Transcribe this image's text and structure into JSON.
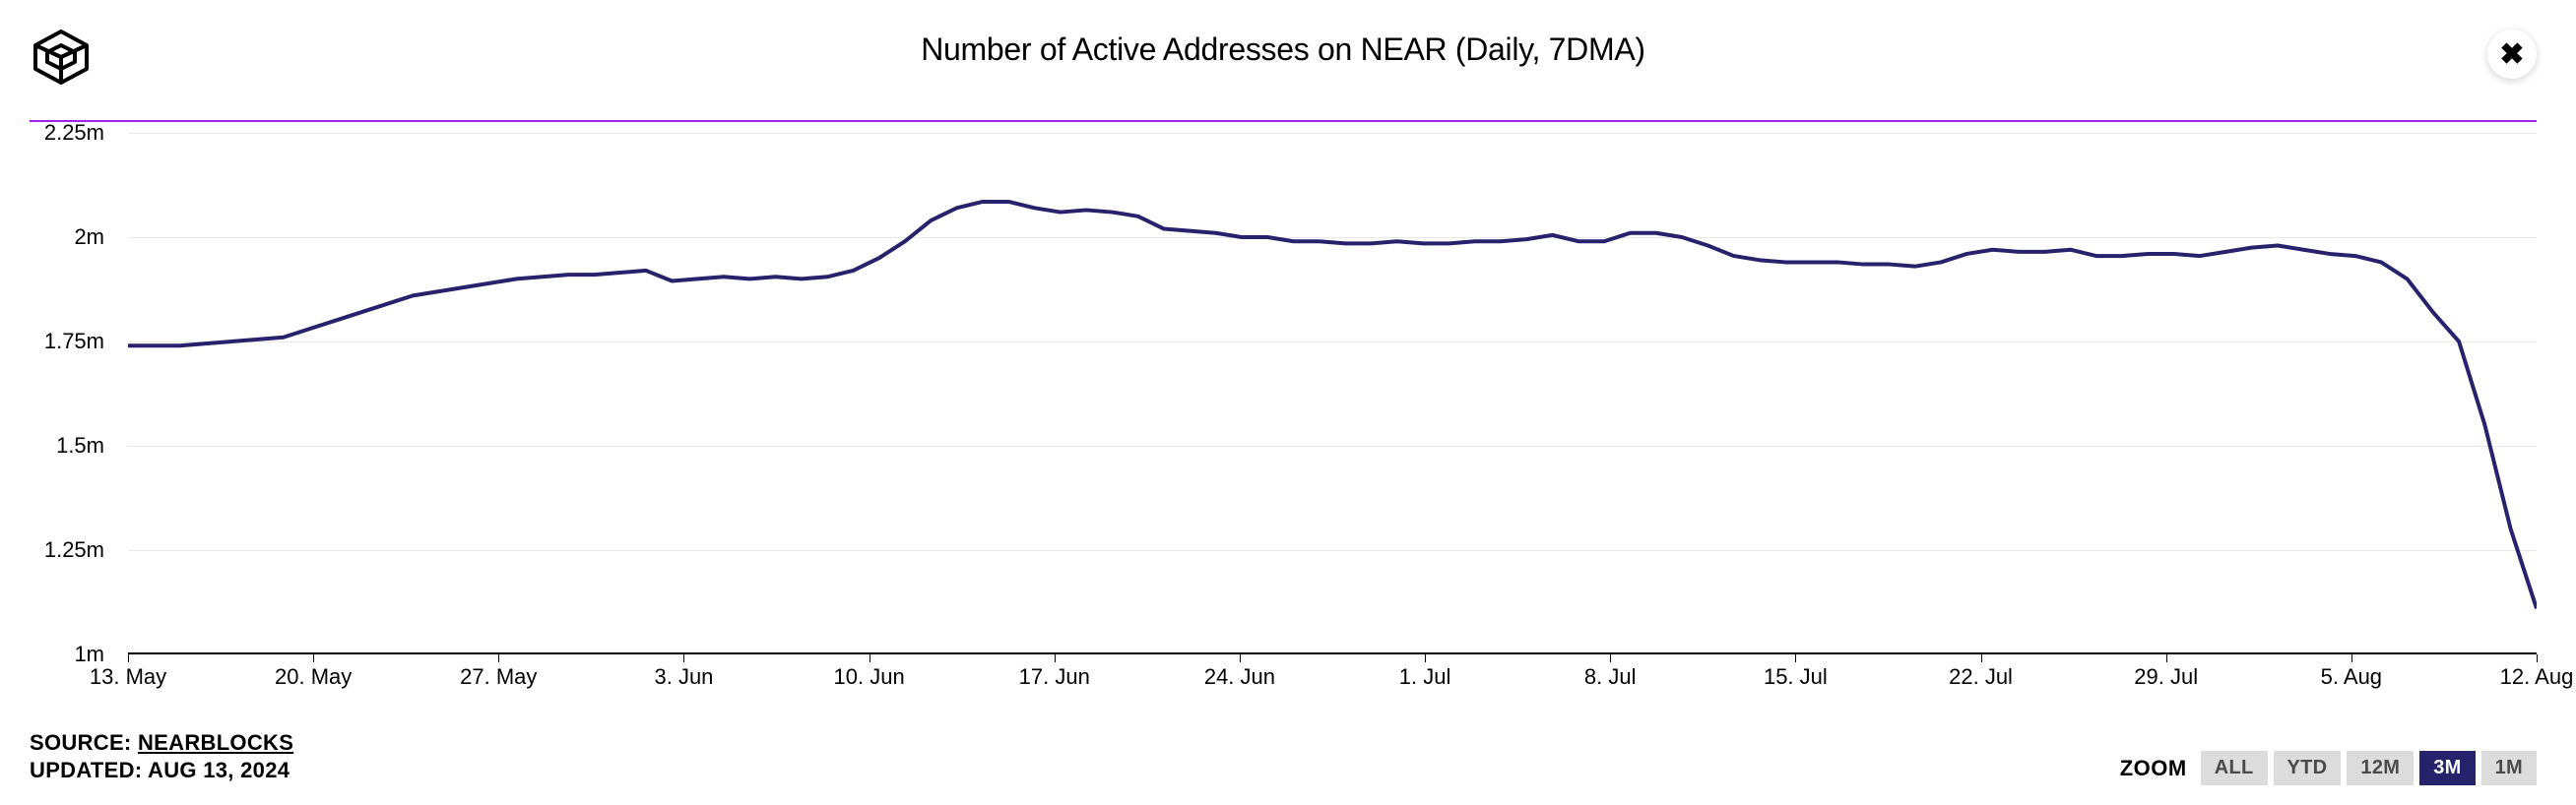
{
  "title": "Number of Active Addresses on NEAR (Daily, 7DMA)",
  "source": {
    "prefix": "SOURCE: ",
    "name": "NEARBLOCKS",
    "updated_prefix": "UPDATED: ",
    "updated": "AUG 13, 2024"
  },
  "zoom": {
    "label": "ZOOM",
    "buttons": [
      "ALL",
      "YTD",
      "12M",
      "3M",
      "1M"
    ],
    "active": "3M"
  },
  "chart": {
    "type": "line",
    "line_color": "#26226b",
    "line_width": 4,
    "background_color": "#ffffff",
    "grid_color": "#e8e8e8",
    "accent_line_color": "#a020f0",
    "title_fontsize": 32,
    "label_fontsize": 22,
    "y_axis": {
      "min": 1000000,
      "max": 2250000,
      "ticks": [
        {
          "value": 2250000,
          "label": "2.25m"
        },
        {
          "value": 2000000,
          "label": "2m"
        },
        {
          "value": 1750000,
          "label": "1.75m"
        },
        {
          "value": 1500000,
          "label": "1.5m"
        },
        {
          "value": 1250000,
          "label": "1.25m"
        },
        {
          "value": 1000000,
          "label": "1m"
        }
      ]
    },
    "x_axis": {
      "labels": [
        "13. May",
        "20. May",
        "27. May",
        "3. Jun",
        "10. Jun",
        "17. Jun",
        "24. Jun",
        "1. Jul",
        "8. Jul",
        "15. Jul",
        "22. Jul",
        "29. Jul",
        "5. Aug",
        "12. Aug"
      ]
    },
    "series": {
      "values": [
        1740000,
        1740000,
        1740000,
        1745000,
        1750000,
        1755000,
        1760000,
        1780000,
        1800000,
        1820000,
        1840000,
        1860000,
        1870000,
        1880000,
        1890000,
        1900000,
        1905000,
        1910000,
        1910000,
        1915000,
        1920000,
        1895000,
        1900000,
        1905000,
        1900000,
        1905000,
        1900000,
        1905000,
        1920000,
        1950000,
        1990000,
        2040000,
        2070000,
        2085000,
        2085000,
        2070000,
        2060000,
        2065000,
        2060000,
        2050000,
        2020000,
        2015000,
        2010000,
        2000000,
        2000000,
        1990000,
        1990000,
        1985000,
        1985000,
        1990000,
        1985000,
        1985000,
        1990000,
        1990000,
        1995000,
        2005000,
        1990000,
        1990000,
        2010000,
        2010000,
        2000000,
        1980000,
        1955000,
        1945000,
        1940000,
        1940000,
        1940000,
        1935000,
        1935000,
        1930000,
        1940000,
        1960000,
        1970000,
        1965000,
        1965000,
        1970000,
        1955000,
        1955000,
        1960000,
        1960000,
        1955000,
        1965000,
        1975000,
        1980000,
        1970000,
        1960000,
        1955000,
        1940000,
        1900000,
        1820000,
        1750000,
        1550000,
        1300000,
        1110000
      ]
    }
  }
}
